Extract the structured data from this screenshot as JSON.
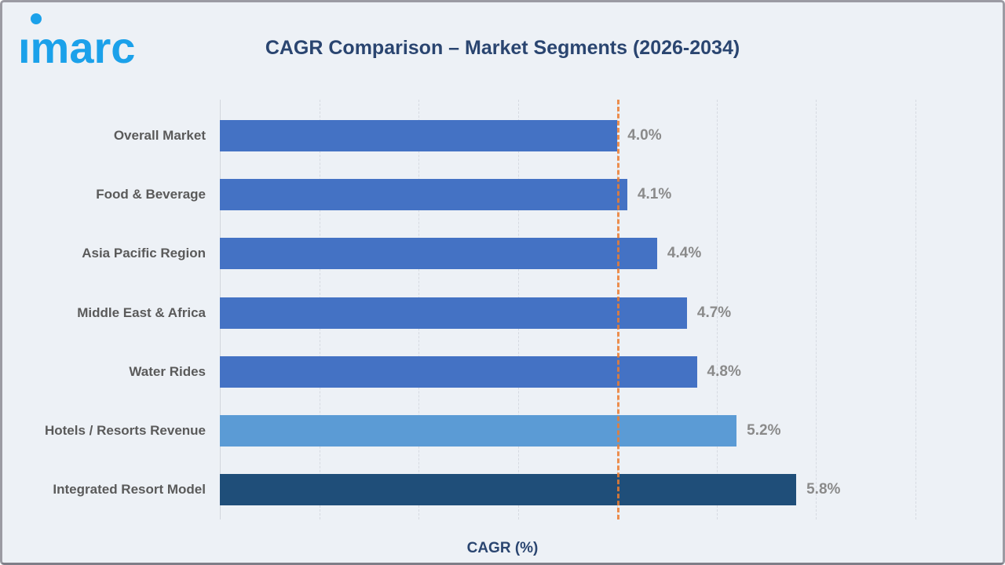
{
  "header": {
    "logo_text": "imarc"
  },
  "colors": {
    "logo_blue": "#1BA1EA",
    "title_navy": "#2A4570",
    "background": "#EDF1F6",
    "frame_border": "#9B9BA3",
    "gridline": "#D6DAE1",
    "category_label": "#5A5A5A",
    "value_label": "#8A8A8A"
  },
  "chart_data": {
    "type": "bar",
    "orientation": "horizontal",
    "title": "CAGR Comparison – Market Segments (2026-2034)",
    "xlabel": "CAGR (%)",
    "ylabel": "",
    "xlim": [
      0,
      7
    ],
    "gridline_step": 1,
    "grid": true,
    "legend": false,
    "reference_line": {
      "value": 4.0,
      "style": "dashed",
      "color": "#ED7D31"
    },
    "categories": [
      "Overall Market",
      "Food & Beverage",
      "Asia Pacific Region",
      "Middle East & Africa",
      "Water Rides",
      "Hotels / Resorts Revenue",
      "Integrated Resort Model"
    ],
    "values": [
      4.0,
      4.1,
      4.4,
      4.7,
      4.8,
      5.2,
      5.8
    ],
    "value_labels": [
      "4.0%",
      "4.1%",
      "4.4%",
      "4.7%",
      "4.8%",
      "5.2%",
      "5.8%"
    ],
    "bar_colors": [
      "#4472C4",
      "#4472C4",
      "#4472C4",
      "#4472C4",
      "#4472C4",
      "#5B9BD5",
      "#1F4E79"
    ]
  }
}
